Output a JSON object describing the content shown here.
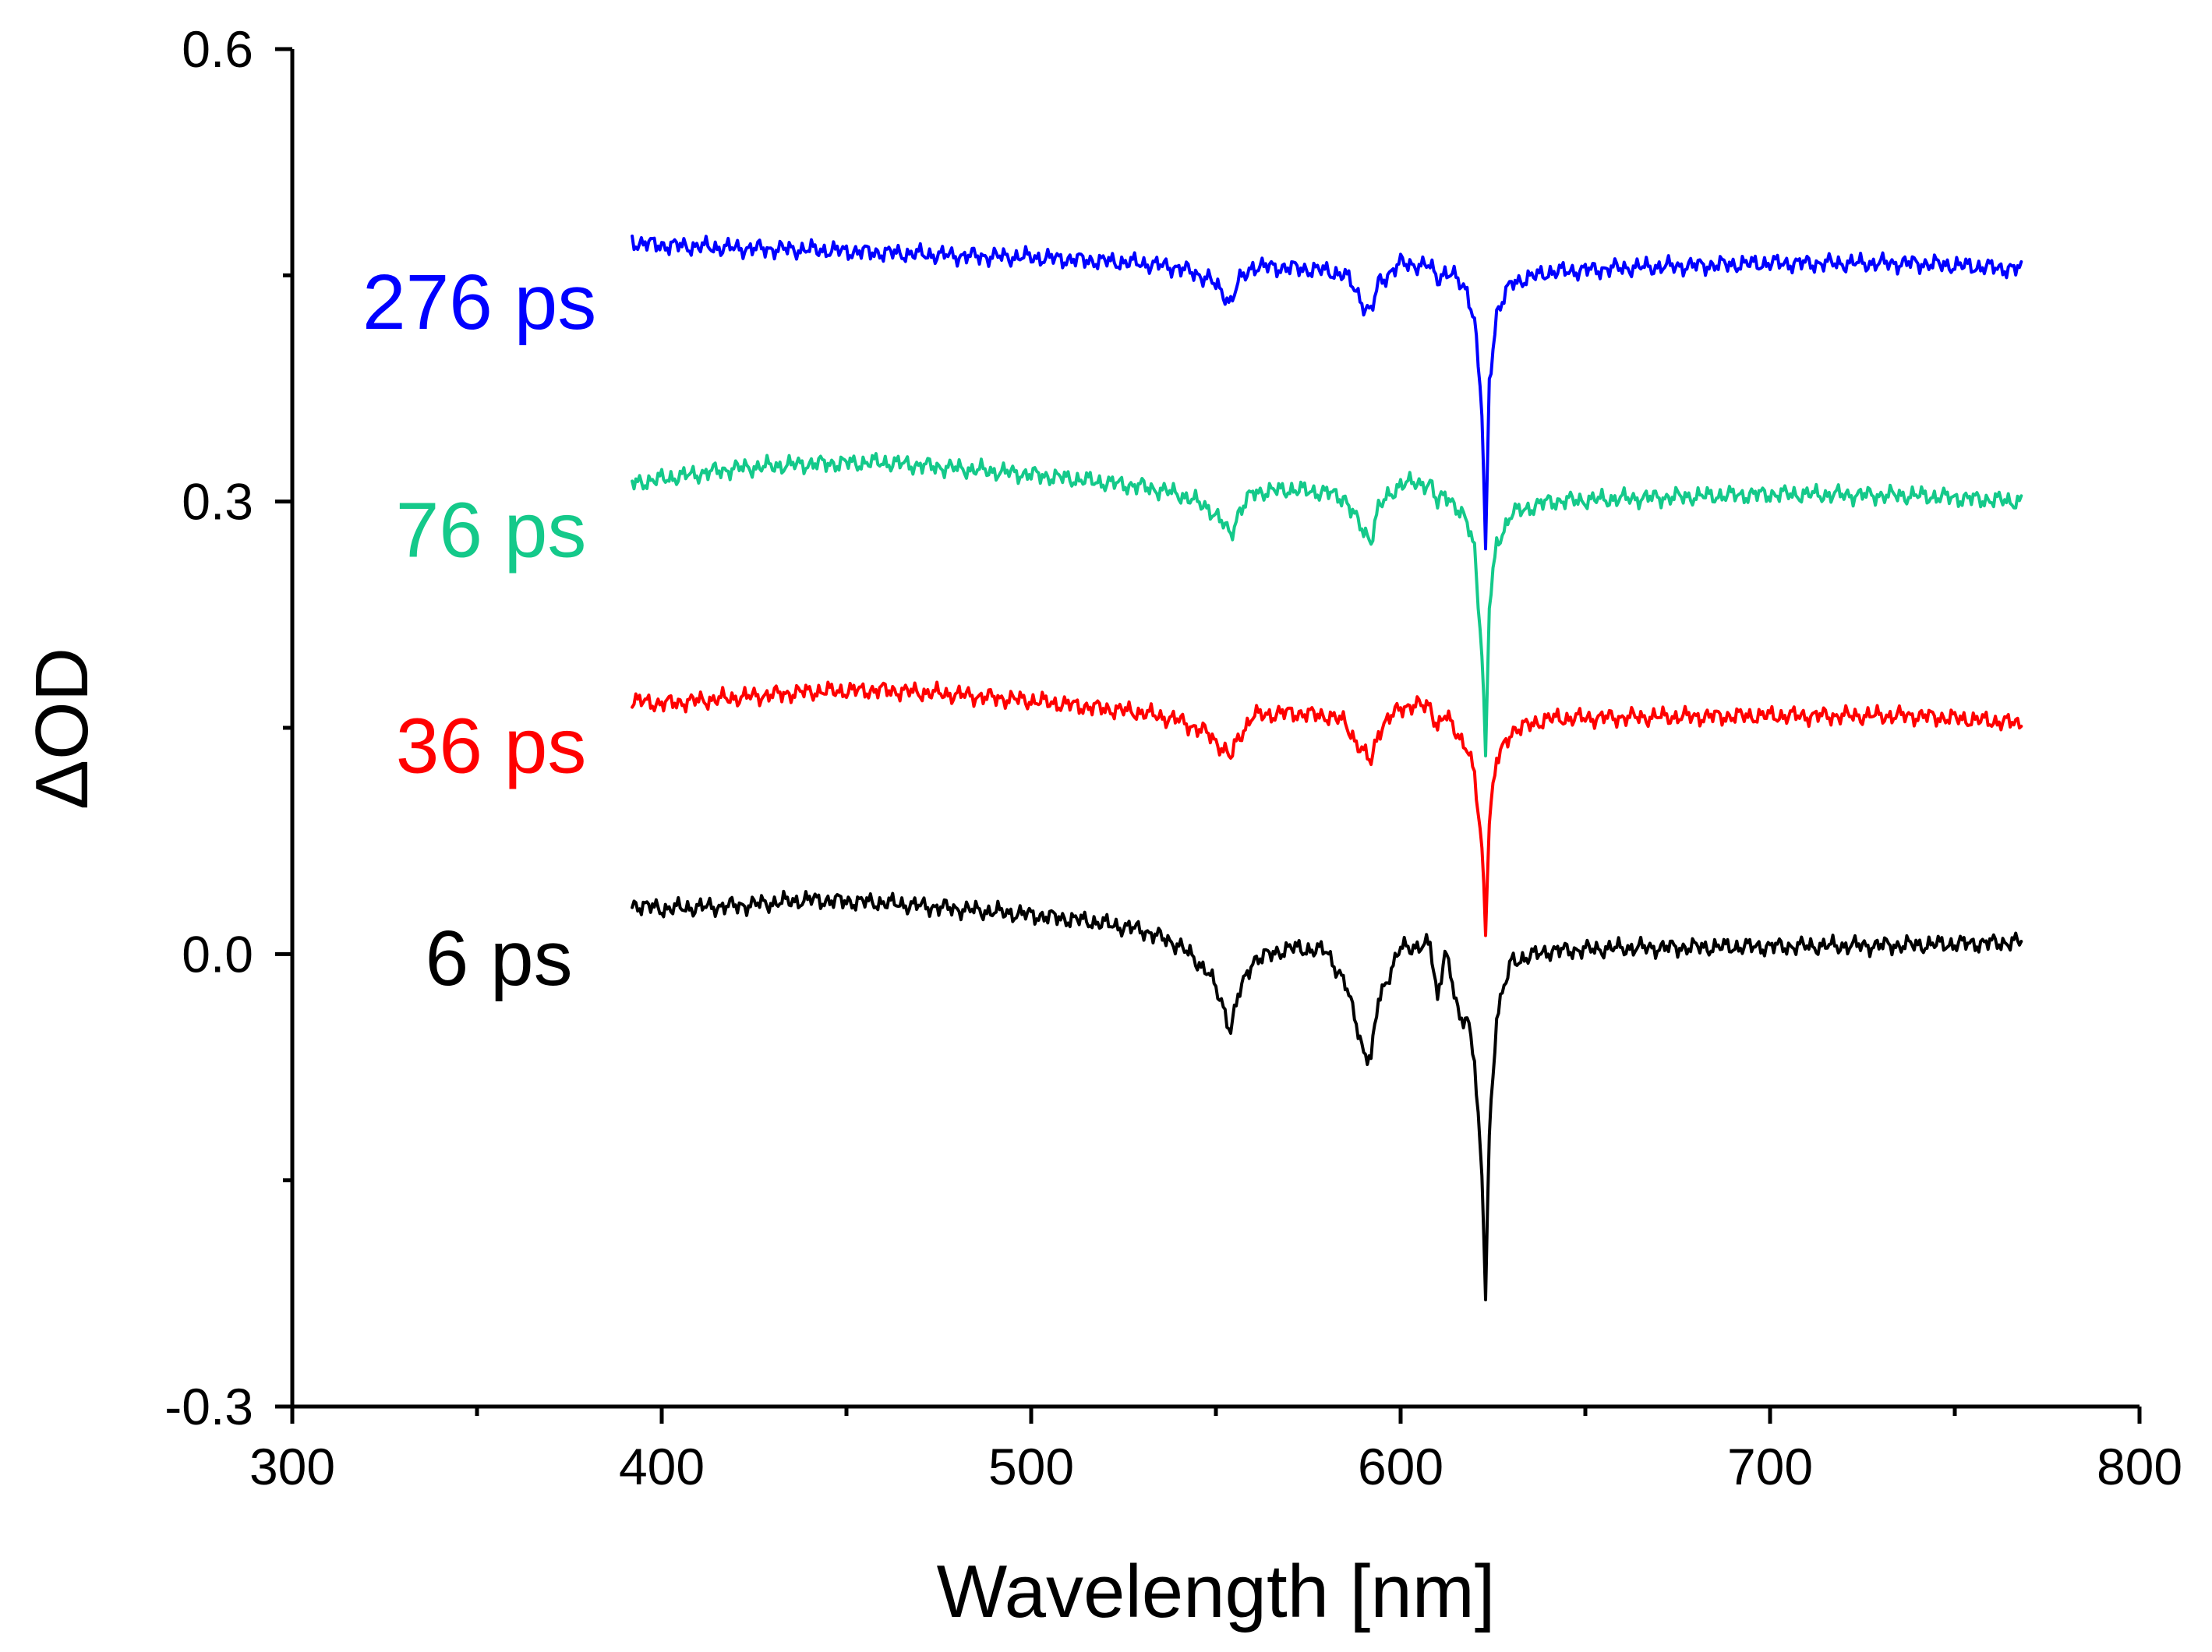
{
  "chart_data": {
    "type": "line",
    "title": "",
    "xlabel": "Wavelength [nm]",
    "ylabel": "ΔOD",
    "xlim": [
      300,
      800
    ],
    "ylim": [
      -0.3,
      0.6
    ],
    "xticks": [
      300,
      400,
      500,
      600,
      700,
      800
    ],
    "xtick_labels": [
      "300",
      "400",
      "500",
      "600",
      "700",
      "800"
    ],
    "xminor": [
      350,
      450,
      550,
      650,
      750
    ],
    "yticks": [
      -0.3,
      0.0,
      0.3,
      0.6
    ],
    "ytick_labels": [
      "-0.3",
      "0.0",
      "0.3",
      "0.6"
    ],
    "yminor": [
      -0.15,
      0.15,
      0.45
    ],
    "grid": false,
    "legend": "inline labels left of traces",
    "series": [
      {
        "name": "276 ps",
        "color": "#0000ff",
        "x": [
          392,
          400,
          420,
          440,
          460,
          480,
          500,
          515,
          530,
          540,
          548,
          552,
          554,
          556,
          560,
          570,
          580,
          585,
          588,
          590,
          592,
          594,
          600,
          608,
          610,
          612,
          614,
          616,
          618,
          620,
          622,
          623,
          624,
          626,
          630,
          640,
          660,
          700,
          740,
          768
        ],
        "y": [
          0.472,
          0.47,
          0.468,
          0.467,
          0.465,
          0.463,
          0.462,
          0.46,
          0.458,
          0.455,
          0.448,
          0.438,
          0.432,
          0.445,
          0.456,
          0.455,
          0.453,
          0.45,
          0.44,
          0.43,
          0.425,
          0.445,
          0.458,
          0.456,
          0.448,
          0.452,
          0.45,
          0.445,
          0.44,
          0.42,
          0.36,
          0.265,
          0.38,
          0.425,
          0.445,
          0.452,
          0.455,
          0.458,
          0.458,
          0.454
        ]
      },
      {
        "name": "76 ps",
        "color": "#14c98a",
        "x": [
          392,
          400,
          420,
          440,
          460,
          480,
          500,
          515,
          530,
          540,
          548,
          552,
          554,
          556,
          560,
          570,
          580,
          585,
          588,
          590,
          592,
          594,
          600,
          608,
          610,
          612,
          614,
          616,
          618,
          620,
          622,
          623,
          624,
          626,
          630,
          640,
          660,
          700,
          740,
          768
        ],
        "y": [
          0.312,
          0.315,
          0.322,
          0.325,
          0.326,
          0.322,
          0.318,
          0.314,
          0.31,
          0.305,
          0.296,
          0.285,
          0.278,
          0.292,
          0.306,
          0.308,
          0.306,
          0.302,
          0.288,
          0.28,
          0.275,
          0.296,
          0.312,
          0.312,
          0.298,
          0.306,
          0.3,
          0.292,
          0.286,
          0.27,
          0.2,
          0.13,
          0.23,
          0.272,
          0.292,
          0.3,
          0.302,
          0.305,
          0.304,
          0.3
        ]
      },
      {
        "name": "36 ps",
        "color": "#ff0000",
        "x": [
          392,
          400,
          420,
          440,
          460,
          480,
          500,
          515,
          530,
          540,
          548,
          552,
          554,
          556,
          560,
          570,
          580,
          585,
          588,
          590,
          592,
          594,
          600,
          608,
          610,
          612,
          614,
          616,
          618,
          620,
          622,
          623,
          624,
          626,
          630,
          640,
          660,
          700,
          740,
          768
        ],
        "y": [
          0.168,
          0.166,
          0.17,
          0.174,
          0.175,
          0.172,
          0.168,
          0.164,
          0.16,
          0.155,
          0.146,
          0.136,
          0.13,
          0.143,
          0.158,
          0.16,
          0.158,
          0.154,
          0.14,
          0.133,
          0.128,
          0.148,
          0.164,
          0.165,
          0.15,
          0.158,
          0.152,
          0.144,
          0.136,
          0.118,
          0.07,
          0.018,
          0.09,
          0.128,
          0.148,
          0.156,
          0.157,
          0.158,
          0.158,
          0.153
        ]
      },
      {
        "name": "6 ps",
        "color": "#000000",
        "x": [
          392,
          400,
          420,
          440,
          460,
          480,
          500,
          515,
          530,
          540,
          548,
          552,
          554,
          556,
          560,
          570,
          580,
          585,
          588,
          590,
          592,
          594,
          600,
          608,
          610,
          612,
          614,
          616,
          618,
          620,
          622,
          623,
          624,
          626,
          630,
          640,
          660,
          700,
          740,
          768
        ],
        "y": [
          0.033,
          0.03,
          0.032,
          0.036,
          0.034,
          0.03,
          0.026,
          0.022,
          0.016,
          0.006,
          -0.012,
          -0.035,
          -0.05,
          -0.028,
          -0.004,
          0.004,
          0.002,
          -0.02,
          -0.045,
          -0.065,
          -0.07,
          -0.03,
          0.004,
          0.006,
          -0.03,
          0.004,
          -0.02,
          -0.045,
          -0.04,
          -0.07,
          -0.15,
          -0.225,
          -0.12,
          -0.04,
          -0.005,
          0.002,
          0.004,
          0.005,
          0.006,
          0.008
        ]
      }
    ],
    "label_positions_nm": [
      {
        "text": "276 ps",
        "x_data": 319,
        "y_data": 0.433
      },
      {
        "text": "76 ps",
        "x_data": 328,
        "y_data": 0.282
      },
      {
        "text": "36 ps",
        "x_data": 328,
        "y_data": 0.139
      },
      {
        "text": "6 ps",
        "x_data": 336,
        "y_data": -0.002
      }
    ]
  }
}
